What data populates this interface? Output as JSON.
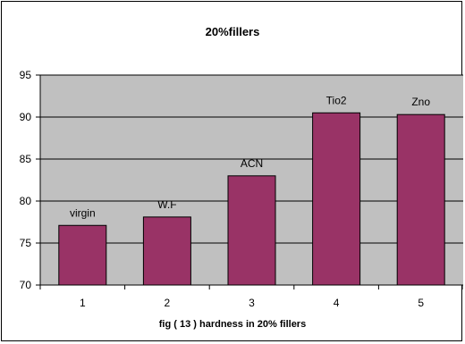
{
  "chart_data": {
    "type": "bar",
    "title": "20%fillers",
    "xlabel": "fig ( 13 ) hardness in 20% fillers",
    "ylabel": "",
    "categories": [
      "1",
      "2",
      "3",
      "4",
      "5"
    ],
    "values": [
      77.1,
      78.1,
      83,
      90.5,
      90.3
    ],
    "bar_labels": [
      "virgin",
      "W.F",
      "ACN",
      "Tio2",
      "Zno"
    ],
    "ylim": [
      70,
      95
    ],
    "yticks": [
      70,
      75,
      80,
      85,
      90,
      95
    ],
    "grid": "horizontal",
    "legend": "none",
    "colors": {
      "bar": "#993366",
      "plot_background": "#c0c0c0",
      "gridline": "#000000"
    }
  }
}
